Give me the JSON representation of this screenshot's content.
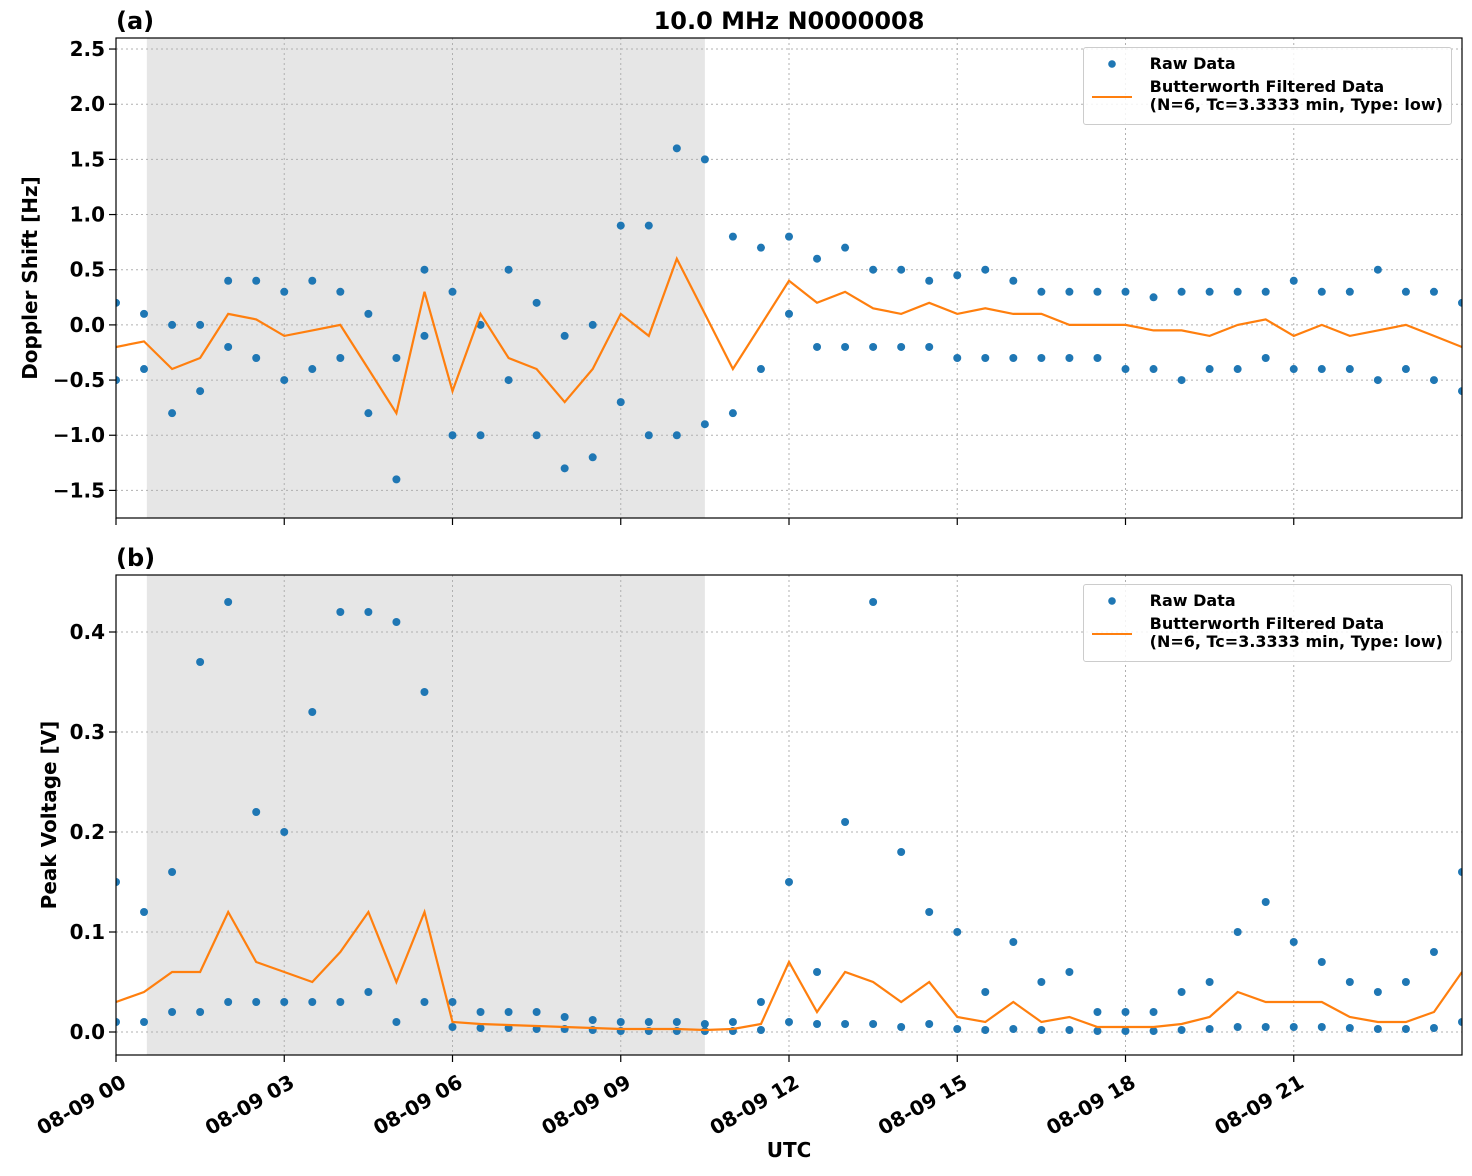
{
  "chart_data": [
    {
      "type": "scatter",
      "title": "10.0 MHz N0000008",
      "panel_label": "(a)",
      "y_label": "Doppler Shift [Hz]",
      "xlim": [
        0,
        24
      ],
      "xticks": [
        0,
        3,
        6,
        9,
        12,
        15,
        18,
        21
      ],
      "xtick_labels": false,
      "ylim": [
        -1.75,
        2.6
      ],
      "yticks": [
        {
          "value": -1.5,
          "label": "−1.5"
        },
        {
          "value": -1.0,
          "label": "−1.0"
        },
        {
          "value": -0.5,
          "label": "−0.5"
        },
        {
          "value": 0,
          "label": "0.0"
        },
        0.5,
        {
          "value": 1.0,
          "label": "1.0"
        },
        1.5,
        {
          "value": 2.0,
          "label": "2.0"
        },
        2.5
      ],
      "grid": true,
      "legend": "upper right",
      "shaded_xrange": [
        0.55,
        10.5
      ],
      "shade_color": "#e6e6e6",
      "series": [
        {
          "name": "Raw Data",
          "color": "#1f77b4",
          "style": "markers",
          "x": [
            0,
            0,
            0.5,
            0.5,
            1,
            1,
            1.5,
            1.5,
            2,
            2,
            2.5,
            2.5,
            3,
            3,
            3.5,
            3.5,
            4,
            4,
            4.5,
            4.5,
            5,
            5,
            5.5,
            5.5,
            6,
            6,
            6.5,
            6.5,
            7,
            7,
            7.5,
            7.5,
            8,
            8,
            8.5,
            8.5,
            9,
            9,
            9.5,
            9.5,
            10,
            10,
            10.5,
            10.5,
            11,
            11,
            11.5,
            11.5,
            12,
            12,
            12.5,
            12.5,
            13,
            13,
            13.5,
            13.5,
            14,
            14,
            14.5,
            14.5,
            15,
            15,
            15.5,
            15.5,
            16,
            16,
            16.5,
            16.5,
            17,
            17,
            17.5,
            17.5,
            18,
            18,
            18.5,
            18.5,
            19,
            19,
            19.5,
            19.5,
            20,
            20,
            20.5,
            20.5,
            21,
            21,
            21.5,
            21.5,
            22,
            22,
            22.5,
            22.5,
            23,
            23,
            23.5,
            23.5,
            24,
            24
          ],
          "values": [
            0.2,
            -0.5,
            0.1,
            -0.4,
            0.0,
            -0.8,
            0.0,
            -0.6,
            0.4,
            -0.2,
            0.4,
            -0.3,
            0.3,
            -0.5,
            0.4,
            -0.4,
            0.3,
            -0.3,
            0.1,
            -0.8,
            -0.3,
            -1.4,
            0.5,
            -0.1,
            0.3,
            -1.0,
            0.0,
            -1.0,
            0.5,
            -0.5,
            0.2,
            -1.0,
            -0.1,
            -1.3,
            0.0,
            -1.2,
            0.9,
            -0.7,
            0.9,
            -1.0,
            1.6,
            -1.0,
            1.5,
            -0.9,
            0.8,
            -0.8,
            0.7,
            -0.4,
            0.8,
            0.1,
            0.6,
            -0.2,
            0.7,
            -0.2,
            0.5,
            -0.2,
            0.5,
            -0.2,
            0.4,
            -0.2,
            0.45,
            -0.3,
            0.5,
            -0.3,
            0.4,
            -0.3,
            0.3,
            -0.3,
            0.3,
            -0.3,
            0.3,
            -0.3,
            0.3,
            -0.4,
            0.25,
            -0.4,
            0.3,
            -0.5,
            0.3,
            -0.4,
            0.3,
            -0.4,
            0.3,
            -0.3,
            0.4,
            -0.4,
            0.3,
            -0.4,
            0.3,
            -0.4,
            0.5,
            -0.5,
            0.3,
            -0.4,
            0.3,
            -0.5,
            0.2,
            -0.6
          ]
        },
        {
          "name": "Butterworth Filtered Data\n(N=6, Tc=3.3333 min, Type: low)",
          "color": "#ff7f0e",
          "style": "line",
          "x": [
            0,
            0.5,
            1,
            1.5,
            2,
            2.5,
            3,
            3.5,
            4,
            4.5,
            5,
            5.5,
            6,
            6.5,
            7,
            7.5,
            8,
            8.5,
            9,
            9.5,
            10,
            10.5,
            11,
            11.5,
            12,
            12.5,
            13,
            13.5,
            14,
            14.5,
            15,
            15.5,
            16,
            16.5,
            17,
            17.5,
            18,
            18.5,
            19,
            19.5,
            20,
            20.5,
            21,
            21.5,
            22,
            22.5,
            23,
            23.5,
            24
          ],
          "values": [
            -0.2,
            -0.15,
            -0.4,
            -0.3,
            0.1,
            0.05,
            -0.1,
            -0.05,
            0.0,
            -0.4,
            -0.8,
            0.3,
            -0.6,
            0.1,
            -0.3,
            -0.4,
            -0.7,
            -0.4,
            0.1,
            -0.1,
            0.6,
            0.1,
            -0.4,
            0.0,
            0.4,
            0.2,
            0.3,
            0.15,
            0.1,
            0.2,
            0.1,
            0.15,
            0.1,
            0.1,
            0.0,
            0.0,
            0.0,
            -0.05,
            -0.05,
            -0.1,
            0.0,
            0.05,
            -0.1,
            0.0,
            -0.1,
            -0.05,
            0.0,
            -0.1,
            -0.2
          ]
        }
      ]
    },
    {
      "type": "scatter",
      "panel_label": "(b)",
      "y_label": "Peak Voltage [V]",
      "x_label": "UTC",
      "xlim": [
        0,
        24
      ],
      "xticks": [
        {
          "value": 0,
          "label": "08-09 00"
        },
        {
          "value": 3,
          "label": "08-09 03"
        },
        {
          "value": 6,
          "label": "08-09 06"
        },
        {
          "value": 9,
          "label": "08-09 09"
        },
        {
          "value": 12,
          "label": "08-09 12"
        },
        {
          "value": 15,
          "label": "08-09 15"
        },
        {
          "value": 18,
          "label": "08-09 18"
        },
        {
          "value": 21,
          "label": "08-09 21"
        }
      ],
      "xtick_labels": true,
      "ylim": [
        -0.023,
        0.457
      ],
      "yticks": [
        {
          "value": 0,
          "label": "0.0"
        },
        0.1,
        0.2,
        0.3,
        0.4
      ],
      "grid": true,
      "legend": "upper right",
      "shaded_xrange": [
        0.55,
        10.5
      ],
      "shade_color": "#e6e6e6",
      "series": [
        {
          "name": "Raw Data",
          "color": "#1f77b4",
          "style": "markers",
          "x": [
            0,
            0,
            0.5,
            0.5,
            1,
            1,
            1.5,
            1.5,
            2,
            2,
            2.5,
            2.5,
            3,
            3,
            3.5,
            3.5,
            4,
            4,
            4.5,
            4.5,
            5,
            5,
            5.5,
            5.5,
            6,
            6,
            6.5,
            6.5,
            7,
            7,
            7.5,
            7.5,
            8,
            8,
            8.5,
            8.5,
            9,
            9,
            9.5,
            9.5,
            10,
            10,
            10.5,
            10.5,
            11,
            11,
            11.5,
            11.5,
            12,
            12,
            12.5,
            12.5,
            13,
            13,
            13.5,
            13.5,
            14,
            14,
            14.5,
            14.5,
            15,
            15,
            15.5,
            15.5,
            16,
            16,
            16.5,
            16.5,
            17,
            17,
            17.5,
            17.5,
            18,
            18,
            18.5,
            18.5,
            19,
            19,
            19.5,
            19.5,
            20,
            20,
            20.5,
            20.5,
            21,
            21,
            21.5,
            21.5,
            22,
            22,
            22.5,
            22.5,
            23,
            23,
            23.5,
            23.5,
            24,
            24
          ],
          "values": [
            0.15,
            0.01,
            0.12,
            0.01,
            0.16,
            0.02,
            0.37,
            0.02,
            0.43,
            0.03,
            0.22,
            0.03,
            0.2,
            0.03,
            0.32,
            0.03,
            0.42,
            0.03,
            0.42,
            0.04,
            0.41,
            0.01,
            0.34,
            0.03,
            0.03,
            0.005,
            0.02,
            0.004,
            0.02,
            0.004,
            0.02,
            0.003,
            0.015,
            0.003,
            0.012,
            0.002,
            0.01,
            0.001,
            0.01,
            0.001,
            0.01,
            0.001,
            0.008,
            0.001,
            0.01,
            0.001,
            0.03,
            0.002,
            0.15,
            0.01,
            0.06,
            0.008,
            0.21,
            0.008,
            0.43,
            0.008,
            0.18,
            0.005,
            0.12,
            0.008,
            0.1,
            0.003,
            0.04,
            0.002,
            0.09,
            0.003,
            0.05,
            0.002,
            0.06,
            0.002,
            0.02,
            0.001,
            0.02,
            0.001,
            0.02,
            0.001,
            0.04,
            0.002,
            0.05,
            0.003,
            0.1,
            0.005,
            0.13,
            0.005,
            0.09,
            0.005,
            0.07,
            0.005,
            0.05,
            0.004,
            0.04,
            0.003,
            0.05,
            0.003,
            0.08,
            0.004,
            0.16,
            0.01
          ]
        },
        {
          "name": "Butterworth Filtered Data\n(N=6, Tc=3.3333 min, Type: low)",
          "color": "#ff7f0e",
          "style": "line",
          "x": [
            0,
            0.5,
            1,
            1.5,
            2,
            2.5,
            3,
            3.5,
            4,
            4.5,
            5,
            5.5,
            6,
            6.5,
            7,
            7.5,
            8,
            8.5,
            9,
            9.5,
            10,
            10.5,
            11,
            11.5,
            12,
            12.5,
            13,
            13.5,
            14,
            14.5,
            15,
            15.5,
            16,
            16.5,
            17,
            17.5,
            18,
            18.5,
            19,
            19.5,
            20,
            20.5,
            21,
            21.5,
            22,
            22.5,
            23,
            23.5,
            24
          ],
          "values": [
            0.03,
            0.04,
            0.06,
            0.06,
            0.12,
            0.07,
            0.06,
            0.05,
            0.08,
            0.12,
            0.05,
            0.12,
            0.01,
            0.008,
            0.007,
            0.006,
            0.005,
            0.004,
            0.003,
            0.003,
            0.003,
            0.002,
            0.003,
            0.008,
            0.07,
            0.02,
            0.06,
            0.05,
            0.03,
            0.05,
            0.015,
            0.01,
            0.03,
            0.01,
            0.015,
            0.005,
            0.005,
            0.005,
            0.008,
            0.015,
            0.04,
            0.03,
            0.03,
            0.03,
            0.015,
            0.01,
            0.01,
            0.02,
            0.06
          ]
        }
      ]
    }
  ]
}
